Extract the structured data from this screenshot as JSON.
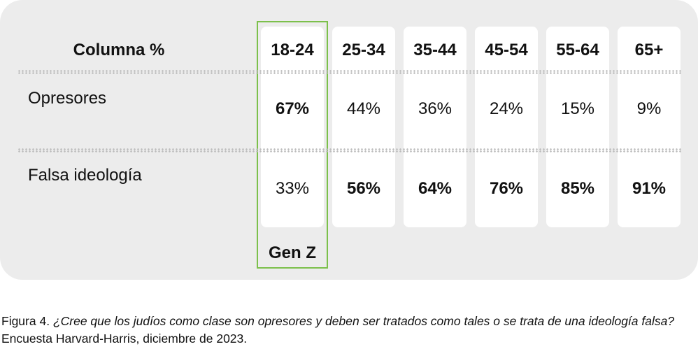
{
  "table": {
    "header": [
      "Columna %",
      "18-24",
      "25-34",
      "35-44",
      "45-54",
      "55-64",
      "65+"
    ],
    "rows": [
      [
        "Opresores",
        "67%",
        "44%",
        "36%",
        "24%",
        "15%",
        "9%"
      ],
      [
        "Falsa ideología",
        "33%",
        "56%",
        "64%",
        "76%",
        "85%",
        "91%"
      ]
    ],
    "bold": [
      [
        false,
        true,
        false,
        false,
        false,
        false,
        false
      ],
      [
        false,
        false,
        true,
        true,
        true,
        true,
        true
      ]
    ],
    "highlight_label": "Gen Z"
  },
  "caption": {
    "label": "Figura 4.",
    "question": "¿Cree que los judíos como clase son opresores y deben ser tratados como tales o se trata de una ideología falsa?",
    "source": "Encuesta Harvard-Harris, diciembre de 2023."
  }
}
